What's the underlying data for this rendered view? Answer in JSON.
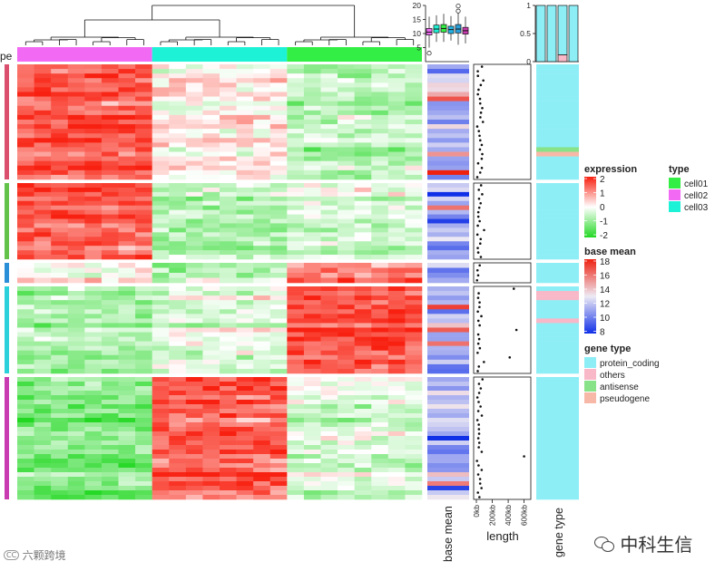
{
  "chart_data": {
    "type": "heatmap",
    "row_slices": 5,
    "column_groups": [
      "cell02",
      "cell03",
      "cell01"
    ],
    "columns_per_group": 8,
    "rows_per_slice": [
      25,
      17,
      4,
      19,
      27
    ],
    "slice_pattern": [
      {
        "cell02": 1.4,
        "cell03": 0.1,
        "cell01": -0.7
      },
      {
        "cell02": 1.5,
        "cell03": -0.6,
        "cell01": -0.3
      },
      {
        "cell02": 0.2,
        "cell03": -0.6,
        "cell01": 1.2
      },
      {
        "cell02": -0.8,
        "cell03": -0.3,
        "cell01": 1.5
      },
      {
        "cell02": -1.1,
        "cell03": 1.5,
        "cell01": -0.3
      }
    ],
    "expression_legend": {
      "title": "expression",
      "ticks": [
        2,
        1,
        0,
        -1,
        -2
      ],
      "colors": {
        "low": "#22d822",
        "mid": "#ffffff",
        "high": "#f82010"
      }
    },
    "base_mean_legend": {
      "title": "base mean",
      "ticks": [
        18,
        16,
        14,
        12,
        10,
        8
      ],
      "colors": {
        "low": "#1030e8",
        "mid": "#eeeaf4",
        "high": "#ee2010"
      }
    },
    "type_legend": {
      "title": "type",
      "items": [
        {
          "label": "cell01",
          "color": "#33ee44"
        },
        {
          "label": "cell02",
          "color": "#f26af3"
        },
        {
          "label": "cell03",
          "color": "#1ef2d6"
        }
      ]
    },
    "gene_type_legend": {
      "title": "gene type",
      "items": [
        {
          "label": "protein_coding",
          "color": "#8eeef6"
        },
        {
          "label": "others",
          "color": "#f8b8c8"
        },
        {
          "label": "antisense",
          "color": "#88e288"
        },
        {
          "label": "pseudogene",
          "color": "#f8b8a8"
        }
      ]
    },
    "row_slice_colors": [
      "#d94f6d",
      "#62c24a",
      "#2b8fd8",
      "#2ad0da",
      "#c93bb0"
    ],
    "boxplot": {
      "ylim": [
        0,
        20
      ],
      "y_ticks": [
        5,
        10,
        15,
        20
      ],
      "boxes": [
        {
          "q1": 9.5,
          "median": 10.5,
          "q3": 11.8,
          "whisker_low": 5.0,
          "whisker_high": 16.0,
          "fill": "#f26af3"
        },
        {
          "q1": 10.3,
          "median": 11.6,
          "q3": 13.0,
          "whisker_low": 7.0,
          "whisker_high": 16.5,
          "fill": "#1ef2d6"
        },
        {
          "q1": 10.5,
          "median": 11.8,
          "q3": 13.2,
          "whisker_low": 7.0,
          "whisker_high": 17.0,
          "fill": "#33ee44"
        },
        {
          "q1": 10.0,
          "median": 11.4,
          "q3": 12.6,
          "whisker_low": 7.5,
          "whisker_high": 16.2,
          "fill": "#22b5e8"
        },
        {
          "q1": 10.2,
          "median": 11.6,
          "q3": 13.2,
          "whisker_low": 6.0,
          "whisker_high": 17.5,
          "fill": "#2a9ed8"
        },
        {
          "q1": 9.8,
          "median": 11.0,
          "q3": 12.2,
          "whisker_low": 6.5,
          "whisker_high": 16.0,
          "fill": "#c93bb0"
        }
      ],
      "outliers": [
        {
          "box": 0,
          "value": 3.0
        },
        {
          "box": 4,
          "value": 18.0
        },
        {
          "box": 4,
          "value": 19.8
        }
      ]
    },
    "stacked_bar": {
      "ylim": [
        0,
        1
      ],
      "y_ticks": [
        0,
        0.5,
        1
      ],
      "bars": [
        {
          "protein_coding": 1.0,
          "others": 0.0
        },
        {
          "protein_coding": 1.0,
          "others": 0.0
        },
        {
          "protein_coding": 0.88,
          "others": 0.12
        },
        {
          "protein_coding": 1.0,
          "others": 0.0
        }
      ]
    },
    "length_axis": {
      "title": "length",
      "tick_labels": [
        "0kb",
        "200kb",
        "400kb",
        "600kb"
      ],
      "tick_values": [
        0,
        200,
        400,
        600
      ],
      "xlim": [
        0,
        650
      ]
    },
    "annotation_labels": {
      "base_mean": "base mean",
      "length": "length",
      "gene_type": "gene type",
      "type_partial": "pe"
    }
  },
  "watermarks": {
    "left": "六颗跨境",
    "left_badge": "CC",
    "right": "中科生信"
  }
}
